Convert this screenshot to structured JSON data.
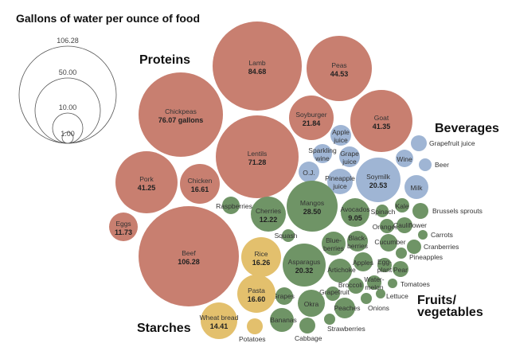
{
  "chart_data": {
    "type": "bubble",
    "title": "Gallons of water per ounce of food",
    "size_legend": [
      "106.28",
      "50.00",
      "10.00",
      "1.00"
    ],
    "colors": {
      "Proteins": "#c87f70",
      "Beverages": "#9fb5d4",
      "Fruits/vegetables": "#6f9466",
      "Starches": "#e3c06d"
    },
    "groups": [
      {
        "name": "Proteins",
        "label": "Proteins",
        "items": [
          {
            "name": "Lamb",
            "value": "84.68"
          },
          {
            "name": "Peas",
            "value": "44.53"
          },
          {
            "name": "Chickpeas",
            "value": "76.07 gallons"
          },
          {
            "name": "Lentils",
            "value": "71.28"
          },
          {
            "name": "Soyburger",
            "value": "21.84"
          },
          {
            "name": "Goat",
            "value": "41.35"
          },
          {
            "name": "Pork",
            "value": "41.25"
          },
          {
            "name": "Chicken",
            "value": "16.61"
          },
          {
            "name": "Eggs",
            "value": "11.73"
          },
          {
            "name": "Beef",
            "value": "106.28"
          }
        ]
      },
      {
        "name": "Beverages",
        "label": "Beverages",
        "items": [
          {
            "name": "Apple juice"
          },
          {
            "name": "Sparkling wine"
          },
          {
            "name": "Grape juice"
          },
          {
            "name": "O.J."
          },
          {
            "name": "Pineapple juice"
          },
          {
            "name": "Soymilk",
            "value": "20.53"
          },
          {
            "name": "Wine"
          },
          {
            "name": "Grapefruit juice"
          },
          {
            "name": "Beer"
          },
          {
            "name": "Milk"
          }
        ]
      },
      {
        "name": "Fruits/vegetables",
        "label": "Fruits/ vegetables",
        "items": [
          {
            "name": "Raspberries"
          },
          {
            "name": "Cherries",
            "value": "12.22"
          },
          {
            "name": "Mangos",
            "value": "28.50"
          },
          {
            "name": "Avocados",
            "value": "9.05"
          },
          {
            "name": "Spinach"
          },
          {
            "name": "Kale"
          },
          {
            "name": "Brussels sprouts"
          },
          {
            "name": "Oranges"
          },
          {
            "name": "Cauliflower"
          },
          {
            "name": "Carrots"
          },
          {
            "name": "Squash"
          },
          {
            "name": "Blueberries"
          },
          {
            "name": "Blackberries"
          },
          {
            "name": "Cucumber"
          },
          {
            "name": "Cranberries"
          },
          {
            "name": "Pineapples"
          },
          {
            "name": "Asparagus",
            "value": "20.32"
          },
          {
            "name": "Artichoke"
          },
          {
            "name": "Apples"
          },
          {
            "name": "Eggplant"
          },
          {
            "name": "Pear"
          },
          {
            "name": "Watermelon"
          },
          {
            "name": "Tomatoes"
          },
          {
            "name": "Broccoli"
          },
          {
            "name": "Grapefruit"
          },
          {
            "name": "Lettuce"
          },
          {
            "name": "Grapes"
          },
          {
            "name": "Okra"
          },
          {
            "name": "Onions"
          },
          {
            "name": "Peaches"
          },
          {
            "name": "Bananas"
          },
          {
            "name": "Strawberries"
          },
          {
            "name": "Cabbage"
          }
        ]
      },
      {
        "name": "Starches",
        "label": "Starches",
        "items": [
          {
            "name": "Rice",
            "value": "16.26"
          },
          {
            "name": "Pasta",
            "value": "16.60"
          },
          {
            "name": "Wheat bread",
            "value": "14.41"
          },
          {
            "name": "Potatoes"
          }
        ]
      }
    ]
  }
}
